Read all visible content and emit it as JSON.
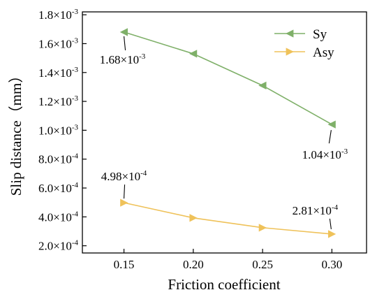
{
  "chart_data": {
    "type": "line",
    "xlabel": "Friction coefficient",
    "ylabel": "Slip distance（mm）",
    "xlim": [
      0.12,
      0.325
    ],
    "ylim": [
      0.00015,
      0.00182
    ],
    "x_ticks": [
      {
        "value": 0.15,
        "label": "0.15"
      },
      {
        "value": 0.2,
        "label": "0.20"
      },
      {
        "value": 0.25,
        "label": "0.25"
      },
      {
        "value": 0.3,
        "label": "0.30"
      }
    ],
    "y_ticks": [
      {
        "value": 0.0002,
        "mantissa": "2.0×10",
        "exp": "-4"
      },
      {
        "value": 0.0004,
        "mantissa": "4.0×10",
        "exp": "-4"
      },
      {
        "value": 0.0006,
        "mantissa": "6.0×10",
        "exp": "-4"
      },
      {
        "value": 0.0008,
        "mantissa": "8.0×10",
        "exp": "-4"
      },
      {
        "value": 0.001,
        "mantissa": "1.0×10",
        "exp": "-3"
      },
      {
        "value": 0.0012,
        "mantissa": "1.2×10",
        "exp": "-3"
      },
      {
        "value": 0.0014,
        "mantissa": "1.4×10",
        "exp": "-3"
      },
      {
        "value": 0.0016,
        "mantissa": "1.6×10",
        "exp": "-3"
      },
      {
        "value": 0.0018,
        "mantissa": "1.8×10",
        "exp": "-3"
      }
    ],
    "series": [
      {
        "name": "Sy",
        "color": "#7fb069",
        "marker": "triangle-left",
        "x": [
          0.15,
          0.2,
          0.25,
          0.3
        ],
        "y": [
          0.00168,
          0.00153,
          0.00131,
          0.00104
        ]
      },
      {
        "name": "Asy",
        "color": "#efc25a",
        "marker": "triangle-right",
        "x": [
          0.15,
          0.2,
          0.25,
          0.3
        ],
        "y": [
          0.000498,
          0.000393,
          0.000325,
          0.000281
        ]
      }
    ],
    "annotations": [
      {
        "series": 0,
        "point": 0,
        "mantissa": "1.68×10",
        "exp": "-3",
        "placement": "below"
      },
      {
        "series": 0,
        "point": 3,
        "mantissa": "1.04×10",
        "exp": "-3",
        "placement": "below-left"
      },
      {
        "series": 1,
        "point": 0,
        "mantissa": "4.98×10",
        "exp": "-4",
        "placement": "above"
      },
      {
        "series": 1,
        "point": 3,
        "mantissa": "2.81×10",
        "exp": "-4",
        "placement": "above-left"
      }
    ],
    "legend": "top-right",
    "grid": false
  }
}
